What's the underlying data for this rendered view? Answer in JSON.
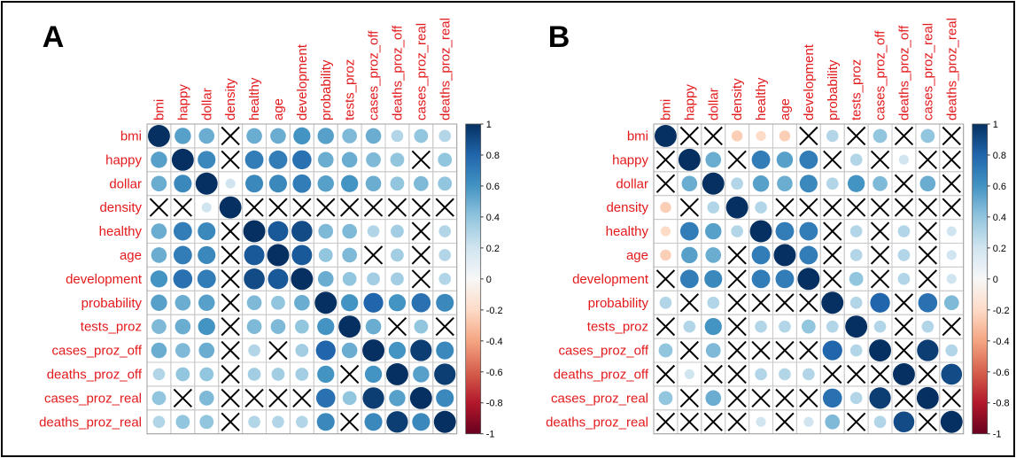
{
  "chart_data": [
    {
      "type": "heatmap",
      "panel": "A",
      "variables": [
        "bmi",
        "happy",
        "dollar",
        "density",
        "healthy",
        "age",
        "development",
        "probability",
        "tests_proz",
        "cases_proz_off",
        "deaths_proz_off",
        "cases_proz_real",
        "deaths_proz_real"
      ],
      "colorbar": {
        "range": [
          -1,
          1
        ],
        "ticks": [
          "1",
          "0.8",
          "0.6",
          "0.4",
          "0.2",
          "0",
          "-0.2",
          "-0.4",
          "-0.6",
          "-0.8",
          "-1"
        ]
      },
      "matrix": [
        [
          1.0,
          0.55,
          0.5,
          null,
          0.5,
          0.5,
          0.6,
          0.55,
          0.45,
          0.5,
          0.3,
          0.4,
          0.3
        ],
        [
          0.55,
          1.0,
          0.65,
          null,
          0.7,
          0.7,
          0.75,
          0.5,
          0.5,
          0.45,
          0.4,
          null,
          0.4
        ],
        [
          0.5,
          0.65,
          1.0,
          0.2,
          0.65,
          0.65,
          0.7,
          0.55,
          0.6,
          0.5,
          0.4,
          0.45,
          0.4
        ],
        [
          null,
          null,
          0.2,
          1.0,
          null,
          null,
          null,
          null,
          null,
          null,
          null,
          null,
          null
        ],
        [
          0.5,
          0.7,
          0.65,
          null,
          1.0,
          0.85,
          0.9,
          0.45,
          0.45,
          0.3,
          0.35,
          null,
          0.3
        ],
        [
          0.5,
          0.7,
          0.65,
          null,
          0.85,
          1.0,
          0.85,
          0.4,
          0.45,
          null,
          0.35,
          null,
          0.3
        ],
        [
          0.6,
          0.75,
          0.7,
          null,
          0.9,
          0.85,
          1.0,
          0.5,
          0.4,
          0.35,
          0.35,
          null,
          0.3
        ],
        [
          0.55,
          0.5,
          0.55,
          null,
          0.45,
          0.4,
          0.5,
          1.0,
          0.6,
          0.8,
          0.6,
          0.75,
          0.65
        ],
        [
          0.45,
          0.5,
          0.6,
          null,
          0.45,
          0.45,
          0.4,
          0.6,
          1.0,
          0.5,
          null,
          0.4,
          null
        ],
        [
          0.5,
          0.45,
          0.5,
          null,
          0.3,
          null,
          0.35,
          0.8,
          0.5,
          1.0,
          0.6,
          0.95,
          0.65
        ],
        [
          0.3,
          0.4,
          0.4,
          null,
          0.35,
          0.35,
          0.35,
          0.6,
          null,
          0.6,
          1.0,
          0.55,
          0.95
        ],
        [
          0.4,
          null,
          0.45,
          null,
          null,
          null,
          null,
          0.75,
          0.4,
          0.95,
          0.55,
          1.0,
          0.65
        ],
        [
          0.3,
          0.4,
          0.4,
          null,
          0.3,
          0.3,
          0.3,
          0.65,
          null,
          0.65,
          0.95,
          0.65,
          1.0
        ]
      ]
    },
    {
      "type": "heatmap",
      "panel": "B",
      "variables": [
        "bmi",
        "happy",
        "dollar",
        "density",
        "healthy",
        "age",
        "development",
        "probability",
        "tests_proz",
        "cases_proz_off",
        "deaths_proz_off",
        "cases_proz_real",
        "deaths_proz_real"
      ],
      "colorbar": {
        "range": [
          -1,
          1
        ],
        "ticks": [
          "1",
          "0.8",
          "0.6",
          "0.4",
          "0.2",
          "0",
          "-0.2",
          "-0.4",
          "-0.6",
          "-0.8",
          "-1"
        ]
      },
      "matrix": [
        [
          1.0,
          null,
          null,
          -0.25,
          -0.2,
          -0.25,
          null,
          0.3,
          null,
          0.4,
          null,
          0.4,
          null
        ],
        [
          null,
          1.0,
          0.5,
          null,
          0.7,
          0.55,
          0.7,
          null,
          0.3,
          null,
          0.2,
          null,
          null
        ],
        [
          null,
          0.5,
          1.0,
          0.3,
          0.55,
          0.5,
          0.65,
          0.3,
          0.6,
          0.45,
          null,
          0.5,
          null
        ],
        [
          -0.25,
          null,
          0.3,
          1.0,
          0.3,
          null,
          null,
          null,
          null,
          null,
          null,
          null,
          null
        ],
        [
          -0.2,
          0.7,
          0.55,
          0.3,
          1.0,
          0.7,
          0.7,
          null,
          0.3,
          null,
          0.3,
          null,
          0.2
        ],
        [
          -0.25,
          0.55,
          0.5,
          null,
          0.7,
          1.0,
          0.7,
          null,
          0.3,
          null,
          0.3,
          null,
          0.2
        ],
        [
          null,
          0.7,
          0.65,
          null,
          0.7,
          0.7,
          1.0,
          null,
          0.4,
          null,
          0.3,
          null,
          0.2
        ],
        [
          0.3,
          null,
          0.3,
          null,
          null,
          null,
          null,
          1.0,
          0.3,
          0.8,
          null,
          0.75,
          0.45
        ],
        [
          null,
          0.3,
          0.6,
          null,
          0.3,
          0.3,
          0.4,
          0.3,
          1.0,
          0.3,
          null,
          0.3,
          null
        ],
        [
          0.4,
          null,
          0.45,
          null,
          null,
          null,
          null,
          0.8,
          0.3,
          1.0,
          null,
          0.95,
          0.3
        ],
        [
          null,
          0.2,
          null,
          null,
          0.3,
          0.3,
          0.3,
          null,
          null,
          null,
          1.0,
          null,
          0.9
        ],
        [
          0.4,
          null,
          0.5,
          null,
          null,
          null,
          null,
          0.75,
          0.3,
          0.95,
          null,
          1.0,
          null
        ],
        [
          null,
          null,
          null,
          null,
          0.2,
          null,
          0.2,
          0.45,
          null,
          0.3,
          0.9,
          null,
          1.0
        ]
      ]
    }
  ]
}
